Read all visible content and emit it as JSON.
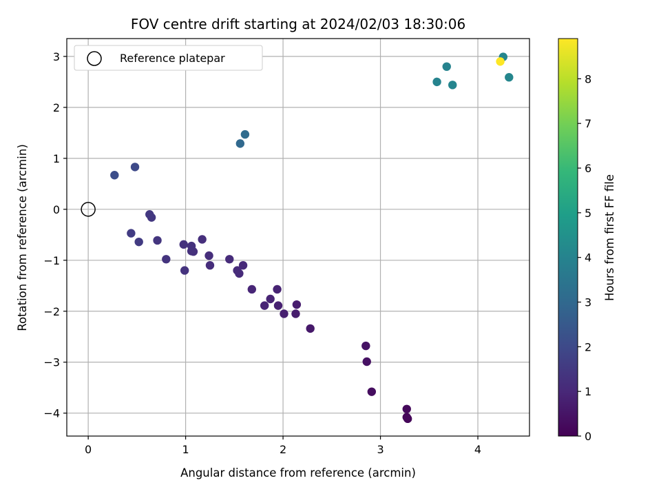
{
  "chart_data": {
    "type": "scatter",
    "title": "FOV centre drift starting at 2024/02/03 18:30:06",
    "xlabel": "Angular distance from reference (arcmin)",
    "ylabel": "Rotation from reference (arcmin)",
    "xlim": [
      -0.22,
      4.53
    ],
    "ylim": [
      -4.45,
      3.35
    ],
    "xticks": [
      "0",
      "1",
      "2",
      "3",
      "4"
    ],
    "xtick_values": [
      0,
      1,
      2,
      3,
      4
    ],
    "yticks": [
      "3",
      "2",
      "1",
      "0",
      "−1",
      "−2",
      "−3",
      "−4"
    ],
    "ytick_values": [
      3,
      2,
      1,
      0,
      -1,
      -2,
      -3,
      -4
    ],
    "grid": true,
    "colormap": "viridis",
    "colormap_stops": [
      "#440154",
      "#482878",
      "#3e4989",
      "#31688e",
      "#26828e",
      "#1f9e89",
      "#35b779",
      "#6ece58",
      "#b5de2b",
      "#fde725"
    ],
    "colorbar": {
      "label": "Hours from first FF file",
      "range": [
        0,
        8.9
      ],
      "ticks": [
        "0",
        "1",
        "2",
        "3",
        "4",
        "5",
        "6",
        "7",
        "8"
      ],
      "tick_values": [
        0,
        1,
        2,
        3,
        4,
        5,
        6,
        7,
        8
      ]
    },
    "legend": {
      "position": "top-left",
      "label": "Reference platepar"
    },
    "reference_point": {
      "x": 0,
      "y": 0
    },
    "points": [
      {
        "x": 3.27,
        "y": -4.08,
        "hours": 0.1
      },
      {
        "x": 3.28,
        "y": -4.11,
        "hours": 0.15
      },
      {
        "x": 3.27,
        "y": -3.92,
        "hours": 0.2
      },
      {
        "x": 2.91,
        "y": -3.58,
        "hours": 0.3
      },
      {
        "x": 2.86,
        "y": -2.99,
        "hours": 0.4
      },
      {
        "x": 2.85,
        "y": -2.68,
        "hours": 0.45
      },
      {
        "x": 2.28,
        "y": -2.34,
        "hours": 0.6
      },
      {
        "x": 2.13,
        "y": -2.05,
        "hours": 0.7
      },
      {
        "x": 2.14,
        "y": -1.87,
        "hours": 0.72
      },
      {
        "x": 2.01,
        "y": -2.05,
        "hours": 0.78
      },
      {
        "x": 1.95,
        "y": -1.89,
        "hours": 0.82
      },
      {
        "x": 1.94,
        "y": -1.57,
        "hours": 0.85
      },
      {
        "x": 1.87,
        "y": -1.76,
        "hours": 0.88
      },
      {
        "x": 1.81,
        "y": -1.89,
        "hours": 0.9
      },
      {
        "x": 1.68,
        "y": -1.57,
        "hours": 0.95
      },
      {
        "x": 1.59,
        "y": -1.1,
        "hours": 1.05
      },
      {
        "x": 1.55,
        "y": -1.26,
        "hours": 1.08
      },
      {
        "x": 1.53,
        "y": -1.2,
        "hours": 1.1
      },
      {
        "x": 1.45,
        "y": -0.98,
        "hours": 1.12
      },
      {
        "x": 1.25,
        "y": -1.1,
        "hours": 1.15
      },
      {
        "x": 1.24,
        "y": -0.91,
        "hours": 1.18
      },
      {
        "x": 1.17,
        "y": -0.59,
        "hours": 1.2
      },
      {
        "x": 1.08,
        "y": -0.83,
        "hours": 1.22
      },
      {
        "x": 1.06,
        "y": -0.82,
        "hours": 1.25
      },
      {
        "x": 1.06,
        "y": -0.72,
        "hours": 1.28
      },
      {
        "x": 0.98,
        "y": -0.69,
        "hours": 1.3
      },
      {
        "x": 0.99,
        "y": -1.2,
        "hours": 1.32
      },
      {
        "x": 0.8,
        "y": -0.98,
        "hours": 1.35
      },
      {
        "x": 0.71,
        "y": -0.61,
        "hours": 1.4
      },
      {
        "x": 0.65,
        "y": -0.16,
        "hours": 1.45
      },
      {
        "x": 0.63,
        "y": -0.1,
        "hours": 1.48
      },
      {
        "x": 0.52,
        "y": -0.64,
        "hours": 1.55
      },
      {
        "x": 0.44,
        "y": -0.47,
        "hours": 1.6
      },
      {
        "x": 0.48,
        "y": 0.83,
        "hours": 2.0
      },
      {
        "x": 0.27,
        "y": 0.67,
        "hours": 2.1
      },
      {
        "x": 1.56,
        "y": 1.29,
        "hours": 3.0
      },
      {
        "x": 1.61,
        "y": 1.47,
        "hours": 3.1
      },
      {
        "x": 3.58,
        "y": 2.5,
        "hours": 4.0
      },
      {
        "x": 3.68,
        "y": 2.8,
        "hours": 4.0
      },
      {
        "x": 3.74,
        "y": 2.44,
        "hours": 4.05
      },
      {
        "x": 4.26,
        "y": 2.99,
        "hours": 4.1
      },
      {
        "x": 4.32,
        "y": 2.59,
        "hours": 4.1
      },
      {
        "x": 4.23,
        "y": 2.9,
        "hours": 8.9
      }
    ]
  }
}
